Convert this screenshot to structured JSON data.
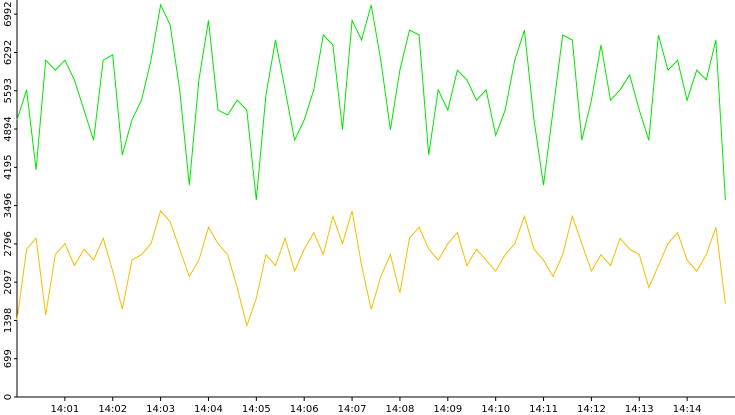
{
  "chart_data": {
    "type": "line",
    "x": [
      0,
      0.2,
      0.4,
      0.6,
      0.8,
      1,
      1.2,
      1.4,
      1.6,
      1.8,
      2,
      2.2,
      2.4,
      2.6,
      2.8,
      3,
      3.2,
      3.4,
      3.6,
      3.8,
      4,
      4.2,
      4.4,
      4.6,
      4.8,
      5,
      5.2,
      5.4,
      5.6,
      5.8,
      6,
      6.2,
      6.4,
      6.6,
      6.8,
      7,
      7.2,
      7.4,
      7.6,
      7.8,
      8,
      8.2,
      8.4,
      8.6,
      8.8,
      9,
      9.2,
      9.4,
      9.6,
      9.8,
      10,
      10.2,
      10.4,
      10.6,
      10.8,
      11,
      11.2,
      11.4,
      11.6,
      11.8,
      12,
      12.2,
      12.4,
      12.6,
      12.8,
      13,
      13.2,
      13.4,
      13.6,
      13.8,
      14,
      14.2,
      14.4,
      14.6,
      14.8
    ],
    "series": [
      {
        "color": "#00e600",
        "values": [
          5060,
          5610,
          4150,
          6150,
          5970,
          6150,
          5790,
          5240,
          4690,
          6150,
          6250,
          4420,
          5060,
          5420,
          6150,
          7160,
          6790,
          5610,
          3870,
          5790,
          6880,
          5240,
          5150,
          5420,
          5240,
          3600,
          5510,
          6520,
          5610,
          4690,
          5060,
          5610,
          6610,
          6430,
          4880,
          6880,
          6520,
          7160,
          6150,
          4880,
          5970,
          6700,
          6610,
          4420,
          5610,
          5240,
          5970,
          5790,
          5420,
          5610,
          4780,
          5240,
          6150,
          6700,
          5060,
          3870,
          5240,
          6610,
          6520,
          4690,
          5420,
          6430,
          5420,
          5610,
          5880,
          5240,
          4690,
          6610,
          5970,
          6150,
          5420,
          5970,
          5790,
          6520,
          3600
        ]
      },
      {
        "color": "#f5be00",
        "values": [
          1400,
          2700,
          2900,
          1500,
          2600,
          2800,
          2400,
          2700,
          2500,
          2900,
          2300,
          1600,
          2500,
          2600,
          2800,
          3400,
          3200,
          2700,
          2200,
          2500,
          3100,
          2800,
          2600,
          2000,
          1300,
          1800,
          2600,
          2400,
          2900,
          2300,
          2700,
          3000,
          2600,
          3300,
          2800,
          3400,
          2400,
          1600,
          2200,
          2600,
          1900,
          2900,
          3100,
          2700,
          2500,
          2800,
          3000,
          2400,
          2700,
          2500,
          2300,
          2600,
          2800,
          3300,
          2700,
          2500,
          2200,
          2600,
          3300,
          2800,
          2300,
          2600,
          2400,
          2900,
          2700,
          2600,
          2000,
          2400,
          2800,
          3000,
          2500,
          2300,
          2600,
          3100,
          1700
        ]
      }
    ],
    "xlim": [
      0,
      15
    ],
    "xticks": [
      {
        "value": 1,
        "label": "14:01"
      },
      {
        "value": 2,
        "label": "14:02"
      },
      {
        "value": 3,
        "label": "14:03"
      },
      {
        "value": 4,
        "label": "14:04"
      },
      {
        "value": 5,
        "label": "14:05"
      },
      {
        "value": 6,
        "label": "14:06"
      },
      {
        "value": 7,
        "label": "14:07"
      },
      {
        "value": 8,
        "label": "14:08"
      },
      {
        "value": 9,
        "label": "14:09"
      },
      {
        "value": 10,
        "label": "14:10"
      },
      {
        "value": 11,
        "label": "14:11"
      },
      {
        "value": 12,
        "label": "14:12"
      },
      {
        "value": 13,
        "label": "14:13"
      },
      {
        "value": 14,
        "label": "14:14"
      }
    ],
    "ylim": [
      0,
      7250
    ],
    "yticks": [
      0,
      699,
      1398,
      2097,
      2796,
      3496,
      4195,
      4894,
      5593,
      6292,
      6992
    ]
  }
}
